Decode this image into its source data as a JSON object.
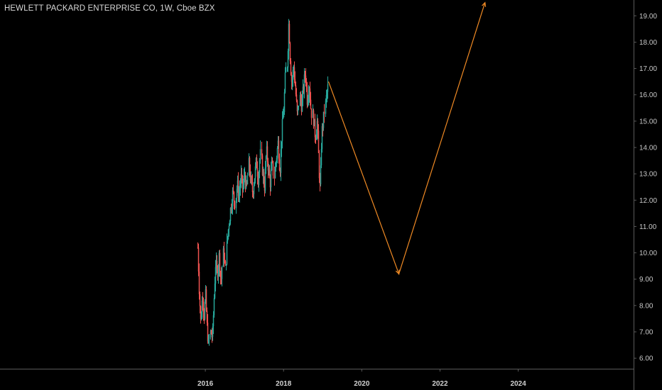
{
  "header": {
    "title": "HEWLETT PACKARD ENTERPRISE CO, 1W, Cboe BZX"
  },
  "colors": {
    "background": "#000000",
    "up_candle": "#26a69a",
    "down_candle": "#ef5350",
    "projection": "#f08a24",
    "axis_line": "#5a5a5a",
    "axis_text": "#c8c8c8"
  },
  "chart_data": {
    "type": "candlestick",
    "y_ticks": [
      "6.00",
      "7.00",
      "8.00",
      "9.00",
      "10.00",
      "11.00",
      "12.00",
      "13.00",
      "14.00",
      "15.00",
      "16.00",
      "17.00",
      "18.00",
      "19.00"
    ],
    "x_ticks": [
      "2016",
      "2018",
      "2020",
      "2022",
      "2024"
    ],
    "ylim": [
      5.6,
      19.6
    ],
    "xlim": [
      2010.75,
      2026.95
    ],
    "grid": false,
    "legend": "none",
    "price_path": [
      [
        2015.79,
        10.2
      ],
      [
        2015.83,
        8.6
      ],
      [
        2015.87,
        7.3
      ],
      [
        2015.92,
        8.5
      ],
      [
        2015.96,
        7.6
      ],
      [
        2016.0,
        8.4
      ],
      [
        2016.04,
        7.2
      ],
      [
        2016.08,
        6.5
      ],
      [
        2016.12,
        7.0
      ],
      [
        2016.17,
        6.8
      ],
      [
        2016.21,
        8.2
      ],
      [
        2016.25,
        9.6
      ],
      [
        2016.3,
        9.2
      ],
      [
        2016.35,
        9.9
      ],
      [
        2016.4,
        8.9
      ],
      [
        2016.45,
        10.1
      ],
      [
        2016.5,
        9.3
      ],
      [
        2016.55,
        10.5
      ],
      [
        2016.6,
        11.2
      ],
      [
        2016.65,
        11.8
      ],
      [
        2016.7,
        12.3
      ],
      [
        2016.75,
        11.9
      ],
      [
        2016.8,
        12.6
      ],
      [
        2016.85,
        12.2
      ],
      [
        2016.9,
        12.9
      ],
      [
        2016.95,
        12.4
      ],
      [
        2017.0,
        13.0
      ],
      [
        2017.05,
        12.3
      ],
      [
        2017.1,
        13.4
      ],
      [
        2017.15,
        12.7
      ],
      [
        2017.2,
        12.3
      ],
      [
        2017.25,
        12.9
      ],
      [
        2017.3,
        13.5
      ],
      [
        2017.35,
        12.8
      ],
      [
        2017.4,
        13.8
      ],
      [
        2017.45,
        13.1
      ],
      [
        2017.5,
        12.5
      ],
      [
        2017.55,
        13.9
      ],
      [
        2017.6,
        13.3
      ],
      [
        2017.65,
        12.6
      ],
      [
        2017.7,
        13.4
      ],
      [
        2017.75,
        12.9
      ],
      [
        2017.8,
        13.6
      ],
      [
        2017.85,
        14.2
      ],
      [
        2017.9,
        13.1
      ],
      [
        2017.95,
        14.6
      ],
      [
        2018.0,
        15.4
      ],
      [
        2018.04,
        16.6
      ],
      [
        2018.08,
        17.2
      ],
      [
        2018.12,
        18.8
      ],
      [
        2018.16,
        17.3
      ],
      [
        2018.2,
        16.4
      ],
      [
        2018.25,
        17.1
      ],
      [
        2018.3,
        16.2
      ],
      [
        2018.35,
        15.2
      ],
      [
        2018.4,
        15.9
      ],
      [
        2018.45,
        15.6
      ],
      [
        2018.5,
        16.3
      ],
      [
        2018.55,
        16.9
      ],
      [
        2018.6,
        15.8
      ],
      [
        2018.65,
        16.5
      ],
      [
        2018.7,
        15.4
      ],
      [
        2018.75,
        15.1
      ],
      [
        2018.8,
        14.4
      ],
      [
        2018.85,
        15.0
      ],
      [
        2018.9,
        13.2
      ],
      [
        2018.93,
        12.3
      ],
      [
        2018.97,
        14.5
      ],
      [
        2019.02,
        15.1
      ],
      [
        2019.07,
        15.8
      ],
      [
        2019.12,
        16.3
      ]
    ],
    "projection": [
      [
        2019.15,
        16.5
      ],
      [
        2020.95,
        9.2
      ],
      [
        2023.15,
        19.5
      ]
    ]
  }
}
